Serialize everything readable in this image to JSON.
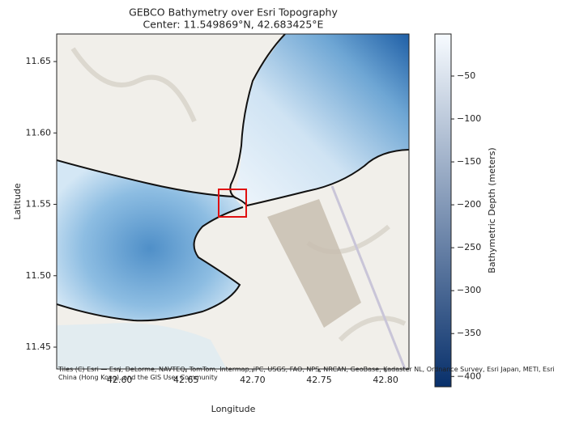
{
  "chart_data": {
    "type": "map",
    "title": "GEBCO Bathymetry over Esri Topography",
    "subtitle": "Center: 11.549869°N, 42.683425°E",
    "x_label": "Longitude",
    "y_label": "Latitude",
    "xlim": [
      42.5527,
      42.8176
    ],
    "xticks": [
      {
        "value": 42.6,
        "label": "42.60"
      },
      {
        "value": 42.65,
        "label": "42.65"
      },
      {
        "value": 42.7,
        "label": "42.70"
      },
      {
        "value": 42.75,
        "label": "42.75"
      },
      {
        "value": 42.8,
        "label": "42.80"
      }
    ],
    "ylim": [
      11.4347,
      11.6693
    ],
    "yticks": [
      {
        "value": 11.45,
        "label": "11.45"
      },
      {
        "value": 11.5,
        "label": "11.50"
      },
      {
        "value": 11.55,
        "label": "11.55"
      },
      {
        "value": 11.6,
        "label": "11.60"
      },
      {
        "value": 11.65,
        "label": "11.65"
      }
    ],
    "colorbar": {
      "label": "Bathymetric Depth (meters)",
      "lim": [
        -412,
        -1
      ],
      "ticks": [
        {
          "value": -50,
          "label": "−50"
        },
        {
          "value": -100,
          "label": "−100"
        },
        {
          "value": -150,
          "label": "−150"
        },
        {
          "value": -200,
          "label": "−200"
        },
        {
          "value": -250,
          "label": "−250"
        },
        {
          "value": -300,
          "label": "−300"
        },
        {
          "value": -350,
          "label": "−350"
        },
        {
          "value": -400,
          "label": "−400"
        }
      ],
      "colors": [
        "#08306b",
        "#f7fbff"
      ]
    },
    "attribution": "Tiles (C) Esri — Esri, DeLorme, NAVTEQ, TomTom, Intermap, iPC, USGS, FAO, NPS, NRCAN, GeoBase, Kadaster NL, Ordnance Survey, Esri Japan, METI, Esri China (Hong Kong), and the GIS User Community"
  }
}
